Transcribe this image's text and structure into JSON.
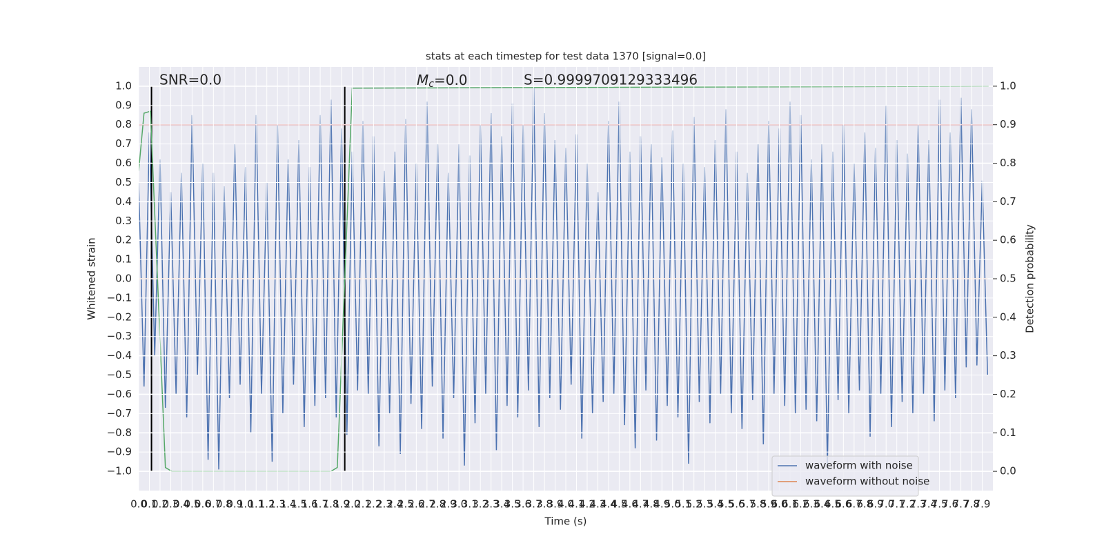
{
  "chart_data": {
    "type": "line",
    "title": "stats at each timestep for test data 1370 [signal=0.0]",
    "x_label": "Time (s)",
    "y_label": "Whitened strain",
    "y2_label": "Detection probability",
    "annotations": {
      "snr": "SNR=0.0",
      "mc": {
        "symbol": "M",
        "subscript": "c",
        "text": "=0.0"
      },
      "s": "S=0.9999709129333496"
    },
    "xlim": [
      0,
      8.0
    ],
    "ylim": [
      -1.1,
      1.1
    ],
    "y2lim": [
      -0.05,
      1.05
    ],
    "grid": true,
    "legend": "lower right",
    "xticks": [
      {
        "value": 0,
        "label": "0.0"
      },
      0.1,
      0.2,
      0.3,
      0.4,
      0.5,
      0.6,
      0.7,
      0.8,
      0.9,
      {
        "value": 1,
        "label": "1.0"
      },
      1.1,
      1.2,
      1.3,
      1.4,
      1.5,
      1.6,
      1.7,
      1.8,
      1.9,
      {
        "value": 2,
        "label": "2.0"
      },
      2.1,
      2.2,
      2.3,
      2.4,
      2.5,
      2.6,
      2.7,
      2.8,
      2.9,
      {
        "value": 3,
        "label": "3.0"
      },
      3.1,
      3.2,
      3.3,
      3.4,
      3.5,
      3.6,
      3.7,
      3.8,
      3.9,
      {
        "value": 4,
        "label": "4.0"
      },
      4.1,
      4.2,
      4.3,
      4.4,
      4.5,
      4.6,
      4.7,
      4.8,
      4.9,
      {
        "value": 5,
        "label": "5.0"
      },
      5.1,
      5.2,
      5.3,
      5.4,
      5.5,
      5.6,
      5.7,
      5.8,
      5.9,
      {
        "value": 6,
        "label": "6.0"
      },
      6.1,
      6.2,
      6.3,
      6.4,
      6.5,
      6.6,
      6.7,
      6.8,
      6.9,
      {
        "value": 7,
        "label": "7.0"
      },
      7.1,
      7.2,
      7.3,
      7.4,
      7.5,
      7.6,
      7.7,
      7.8,
      7.9
    ],
    "yticks": [
      {
        "value": -1,
        "label": "−1.0"
      },
      {
        "value": -0.9,
        "label": "−0.9"
      },
      {
        "value": -0.8,
        "label": "−0.8"
      },
      {
        "value": -0.7,
        "label": "−0.7"
      },
      {
        "value": -0.6,
        "label": "−0.6"
      },
      {
        "value": -0.5,
        "label": "−0.5"
      },
      {
        "value": -0.4,
        "label": "−0.4"
      },
      {
        "value": -0.3,
        "label": "−0.3"
      },
      {
        "value": -0.2,
        "label": "−0.2"
      },
      {
        "value": -0.1,
        "label": "−0.1"
      },
      {
        "value": 0,
        "label": "0.0"
      },
      0.1,
      0.2,
      0.3,
      0.4,
      0.5,
      0.6,
      0.7,
      0.8,
      0.9,
      {
        "value": 1,
        "label": "1.0"
      }
    ],
    "y2ticks": [
      {
        "value": 0,
        "label": "0.0"
      },
      0.1,
      0.2,
      0.3,
      0.4,
      0.5,
      0.6,
      0.7,
      0.8,
      0.9,
      {
        "value": 1,
        "label": "1.0"
      }
    ],
    "series": [
      {
        "name": "waveform with noise",
        "color": "#4c72b0",
        "x": [
          0,
          0.05,
          0.1,
          0.15,
          0.2,
          0.25,
          0.3,
          0.35,
          0.4,
          0.45,
          0.5,
          0.55,
          0.6,
          0.65,
          0.7,
          0.75,
          0.8,
          0.85,
          0.9,
          0.95,
          1,
          1.05,
          1.1,
          1.15,
          1.2,
          1.25,
          1.3,
          1.35,
          1.4,
          1.45,
          1.5,
          1.55,
          1.6,
          1.65,
          1.7,
          1.75,
          1.8,
          1.85,
          1.9,
          1.95,
          2,
          2.05,
          2.1,
          2.15,
          2.2,
          2.25,
          2.3,
          2.35,
          2.4,
          2.45,
          2.5,
          2.55,
          2.6,
          2.65,
          2.7,
          2.75,
          2.8,
          2.85,
          2.9,
          2.95,
          3,
          3.05,
          3.1,
          3.15,
          3.2,
          3.25,
          3.3,
          3.35,
          3.4,
          3.45,
          3.5,
          3.55,
          3.6,
          3.65,
          3.7,
          3.75,
          3.8,
          3.85,
          3.9,
          3.95,
          4,
          4.05,
          4.1,
          4.15,
          4.2,
          4.25,
          4.3,
          4.35,
          4.4,
          4.45,
          4.5,
          4.55,
          4.6,
          4.65,
          4.7,
          4.75,
          4.8,
          4.85,
          4.9,
          4.95,
          5,
          5.05,
          5.1,
          5.15,
          5.2,
          5.25,
          5.3,
          5.35,
          5.4,
          5.45,
          5.5,
          5.55,
          5.6,
          5.65,
          5.7,
          5.75,
          5.8,
          5.85,
          5.9,
          5.95,
          6,
          6.05,
          6.1,
          6.15,
          6.2,
          6.25,
          6.3,
          6.35,
          6.4,
          6.45,
          6.5,
          6.55,
          6.6,
          6.65,
          6.7,
          6.75,
          6.8,
          6.85,
          6.9,
          6.95,
          7,
          7.05,
          7.1,
          7.15,
          7.2,
          7.25,
          7.3,
          7.35,
          7.4,
          7.45,
          7.5,
          7.55,
          7.6,
          7.65,
          7.7,
          7.75,
          7.8,
          7.85,
          7.9,
          7.95
        ],
        "values": [
          0.5,
          -0.56,
          0.76,
          -0.4,
          0.62,
          -0.67,
          0.45,
          -0.6,
          0.55,
          -0.72,
          0.85,
          -0.5,
          0.6,
          -0.94,
          0.55,
          -0.99,
          0.48,
          -0.62,
          0.7,
          -0.55,
          0.58,
          -0.8,
          0.85,
          -0.6,
          0.5,
          -0.95,
          0.8,
          -0.7,
          0.62,
          -0.55,
          0.72,
          -0.77,
          0.58,
          -0.66,
          0.85,
          -0.62,
          0.93,
          -0.72,
          0.78,
          -0.81,
          0.66,
          -0.58,
          0.82,
          -0.6,
          0.74,
          -0.87,
          0.56,
          -0.7,
          0.66,
          -0.91,
          0.83,
          -0.65,
          0.6,
          -0.78,
          0.92,
          -0.56,
          0.7,
          -0.83,
          0.55,
          -0.62,
          0.7,
          -0.97,
          0.64,
          -0.75,
          0.8,
          -0.6,
          0.86,
          -0.89,
          0.74,
          -0.66,
          0.91,
          -0.72,
          0.8,
          -0.58,
          0.99,
          -0.77,
          0.86,
          -0.62,
          0.72,
          -0.68,
          0.68,
          -0.55,
          0.75,
          -0.83,
          0.6,
          -0.7,
          0.45,
          -0.64,
          0.82,
          -0.6,
          0.92,
          -0.76,
          0.66,
          -0.88,
          0.74,
          -0.58,
          0.7,
          -0.84,
          0.63,
          -0.66,
          0.77,
          -0.72,
          0.6,
          -0.96,
          0.84,
          -0.64,
          0.58,
          -0.75,
          0.72,
          -0.6,
          0.88,
          -0.7,
          0.66,
          -0.78,
          0.55,
          -0.63,
          0.7,
          -0.86,
          0.82,
          -0.6,
          0.78,
          -0.66,
          0.92,
          -0.7,
          0.85,
          -0.68,
          0.62,
          -0.74,
          0.7,
          -0.98,
          0.66,
          -0.63,
          0.8,
          -0.7,
          0.6,
          -0.58,
          0.76,
          -0.82,
          0.68,
          -0.6,
          0.9,
          -0.77,
          0.72,
          -0.64,
          0.65,
          -0.7,
          0.8,
          -0.6,
          0.72,
          -0.74,
          0.93,
          -0.58,
          0.76,
          -0.62,
          0.94,
          -0.46,
          0.88,
          -0.45,
          0.51,
          -0.5
        ]
      },
      {
        "name": "waveform without noise",
        "color": "#dd8452",
        "x": [
          0,
          7.95
        ],
        "values": [
          0,
          0
        ]
      },
      {
        "color": "#55a868",
        "axis": "y2",
        "x": [
          0,
          0.05,
          0.11,
          0.22,
          0.25,
          0.31,
          1.8,
          1.86,
          1.93,
          2.0,
          7.96
        ],
        "values": [
          0.78,
          0.93,
          0.935,
          0.21,
          0.01,
          0,
          0,
          0.01,
          0.5,
          0.995,
          1.0
        ]
      }
    ],
    "hlines": [
      {
        "value": 0.9,
        "axis": "y2",
        "color": "#c44e52"
      }
    ],
    "vlines": [
      {
        "x": 0.12,
        "ymin": -1,
        "ymax": 1,
        "color": "#000000"
      },
      {
        "x": 1.93,
        "ymin": -1,
        "ymax": 1,
        "color": "#000000"
      }
    ]
  }
}
